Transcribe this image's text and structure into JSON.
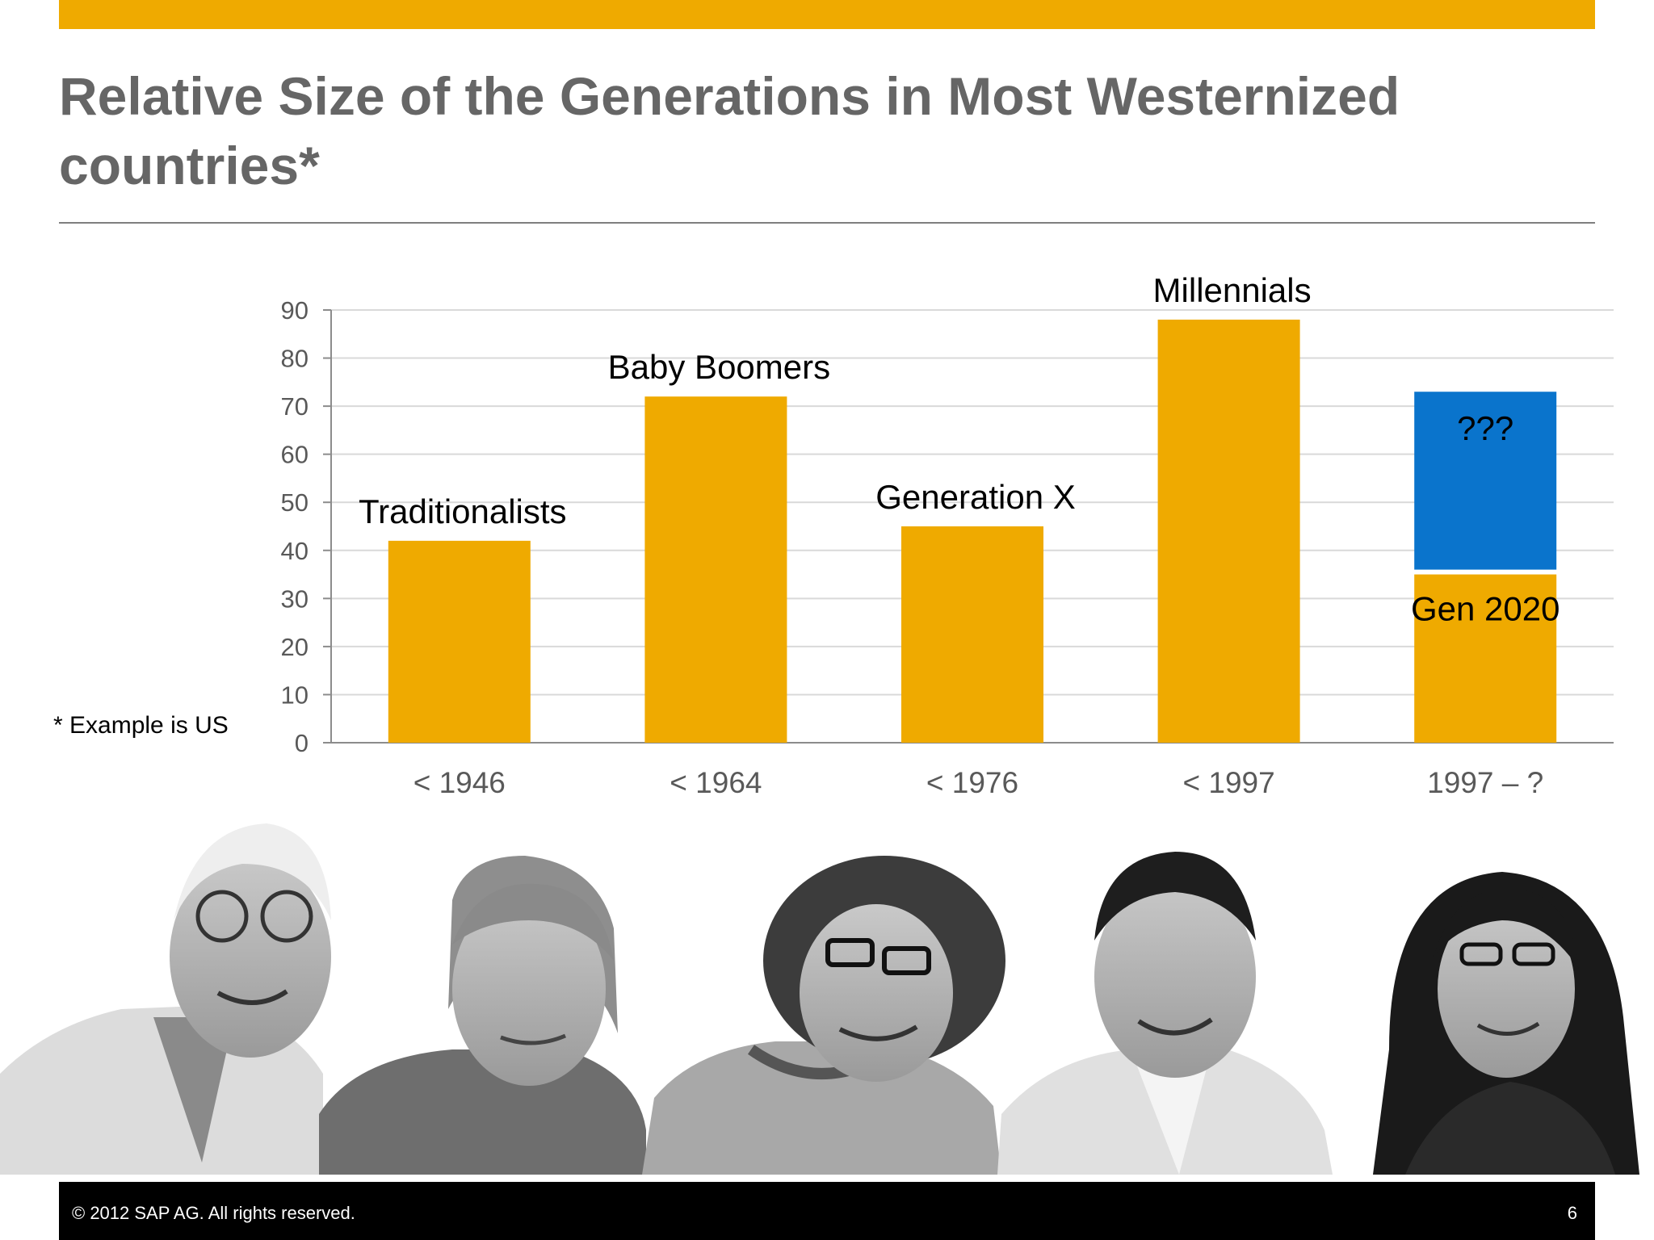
{
  "slide": {
    "title": "Relative Size of the Generations in Most Westernized countries*",
    "footnote": "* Example is US",
    "footer_copyright": "©  2012 SAP AG. All rights reserved.",
    "page_number": "6"
  },
  "colors": {
    "accent": "#EFAA00",
    "highlight": "#0A74CC",
    "title_text": "#666666",
    "footer_bg": "#000000"
  },
  "chart_data": {
    "type": "bar",
    "categories": [
      "< 1946",
      "< 1964",
      "< 1976",
      "< 1997",
      "1997 – ?"
    ],
    "values": [
      42,
      72,
      45,
      88,
      35
    ],
    "bar_labels": [
      "Traditionalists",
      "Baby Boomers",
      "Generation X",
      "Millennials",
      "Gen 2020"
    ],
    "stacked_extra": {
      "category": "1997 – ?",
      "base": 36,
      "top": 73,
      "label": "???"
    },
    "y_ticks": [
      0,
      10,
      20,
      30,
      40,
      50,
      60,
      70,
      80,
      90
    ],
    "ylim": [
      0,
      90
    ],
    "grid": true,
    "legend": "none"
  },
  "portraits": [
    {
      "icon": "older-man-portrait",
      "generation": "Traditionalists"
    },
    {
      "icon": "woman-portrait",
      "generation": "Baby Boomers"
    },
    {
      "icon": "curly-haired-man-portrait",
      "generation": "Generation X"
    },
    {
      "icon": "young-man-portrait",
      "generation": "Millennials"
    },
    {
      "icon": "young-woman-portrait",
      "generation": "Gen 2020"
    }
  ]
}
